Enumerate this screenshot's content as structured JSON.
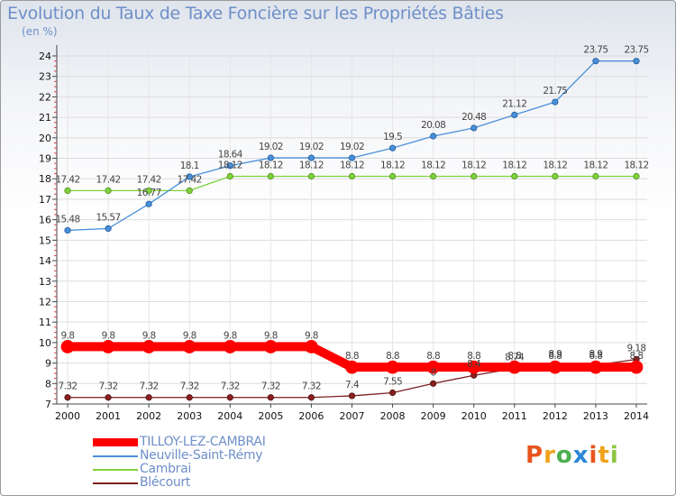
{
  "chart_data": {
    "type": "line",
    "title": "Evolution du Taux de Taxe Foncière sur les Propriétés Bâties",
    "unit_label": "(en %)",
    "x": [
      "2000",
      "2001",
      "2002",
      "2003",
      "2004",
      "2005",
      "2006",
      "2007",
      "2008",
      "2009",
      "2010",
      "2011",
      "2012",
      "2013",
      "2014"
    ],
    "ylim": [
      7,
      24
    ],
    "yticks": [
      "7",
      "8",
      "9",
      "10",
      "11",
      "12",
      "13",
      "14",
      "15",
      "16",
      "17",
      "18",
      "19",
      "20",
      "21",
      "22",
      "23",
      "24"
    ],
    "series": [
      {
        "name": "TILLOY-LEZ-CAMBRAI",
        "color": "#ff0000",
        "values": [
          9.8,
          9.8,
          9.8,
          9.8,
          9.8,
          9.8,
          9.8,
          8.8,
          8.8,
          8.8,
          8.8,
          8.8,
          8.8,
          8.8,
          8.8
        ],
        "labels": [
          "9.8",
          "9.8",
          "9.8",
          "9.8",
          "9.8",
          "9.8",
          "9.8",
          "8.8",
          "8.8",
          "8.8",
          "8.8",
          "8.8",
          "8.8",
          "8.8",
          "8.8"
        ]
      },
      {
        "name": "Neuville-Saint-Rémy",
        "color": "#4a90d9",
        "values": [
          15.48,
          15.57,
          16.77,
          18.1,
          18.64,
          19.02,
          19.02,
          19.02,
          19.5,
          20.08,
          20.48,
          21.12,
          21.75,
          23.75,
          23.75
        ],
        "labels": [
          "15.48",
          "15.57",
          "16.77",
          "18.1",
          "18.64",
          "19.02",
          "19.02",
          "19.02",
          "19.5",
          "20.08",
          "20.48",
          "21.12",
          "21.75",
          "23.75",
          "23.75"
        ]
      },
      {
        "name": "Cambrai",
        "color": "#7fd13b",
        "values": [
          17.42,
          17.42,
          17.42,
          17.42,
          18.12,
          18.12,
          18.12,
          18.12,
          18.12,
          18.12,
          18.12,
          18.12,
          18.12,
          18.12,
          18.12
        ],
        "labels": [
          "17.42",
          "17.42",
          "17.42",
          "17.42",
          "18.12",
          "18.12",
          "18.12",
          "18.12",
          "18.12",
          "18.12",
          "18.12",
          "18.12",
          "18.12",
          "18.12",
          "18.12"
        ]
      },
      {
        "name": "Blécourt",
        "color": "#7b1f1f",
        "values": [
          7.32,
          7.32,
          7.32,
          7.32,
          7.32,
          7.32,
          7.32,
          7.4,
          7.55,
          8,
          8.4,
          8.74,
          8.9,
          8.9,
          9.18
        ],
        "labels": [
          "7.32",
          "7.32",
          "7.32",
          "7.32",
          "7.32",
          "7.32",
          "7.32",
          "7.4",
          "7.55",
          "8",
          "8.4",
          "8.74",
          "8.9",
          "8.9",
          "9.18"
        ]
      }
    ]
  },
  "logo": {
    "letters": [
      "P",
      "r",
      "o",
      "x",
      "i",
      "t",
      "i"
    ],
    "colors": [
      "#e8541e",
      "#f0a21a",
      "#4caf50",
      "#2a86d6",
      "#e8541e",
      "#f0a21a",
      "#8cc63f"
    ]
  }
}
